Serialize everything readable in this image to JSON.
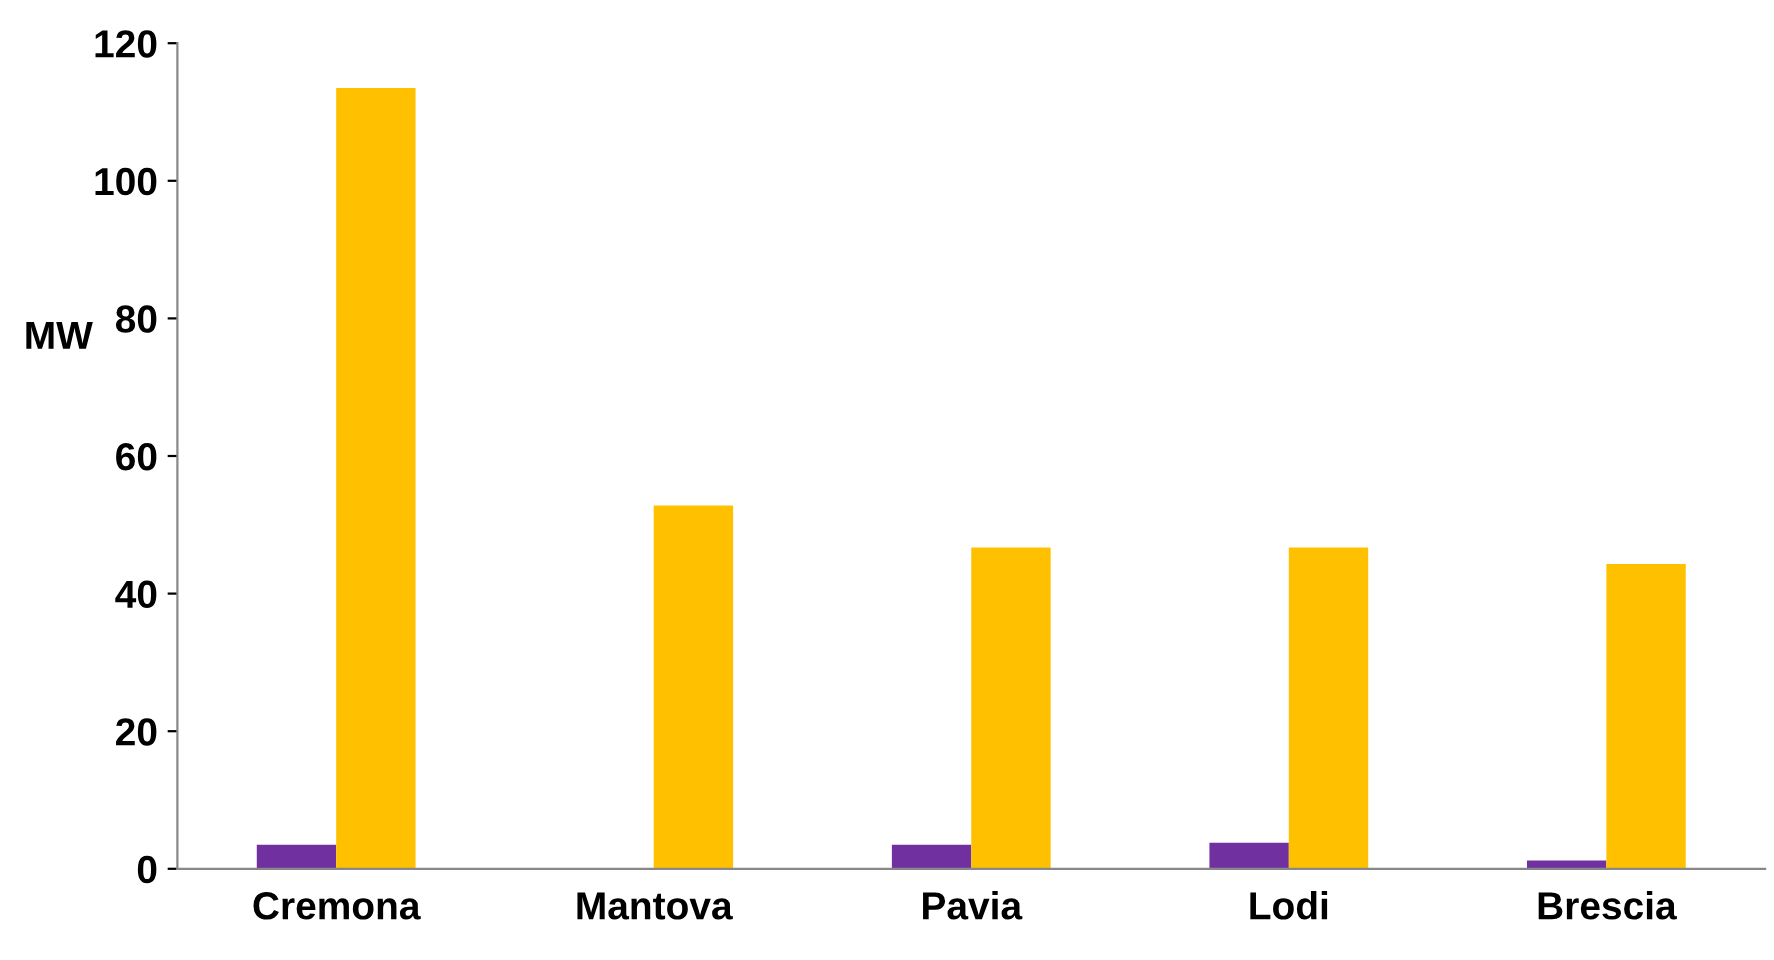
{
  "chart_data": {
    "type": "bar",
    "ylabel": "MW",
    "categories": [
      "Cremona",
      "Mantova",
      "Pavia",
      "Lodi",
      "Brescia"
    ],
    "series": [
      {
        "color": "#7030a0",
        "values": [
          3.5,
          0,
          3.5,
          3.8,
          1.2
        ]
      },
      {
        "color": "#ffc000",
        "values": [
          113.5,
          52.8,
          46.7,
          46.7,
          44.3
        ]
      }
    ],
    "ylim": [
      0,
      120
    ],
    "yticks": [
      0,
      20,
      40,
      60,
      80,
      100,
      120
    ],
    "grid": false
  }
}
